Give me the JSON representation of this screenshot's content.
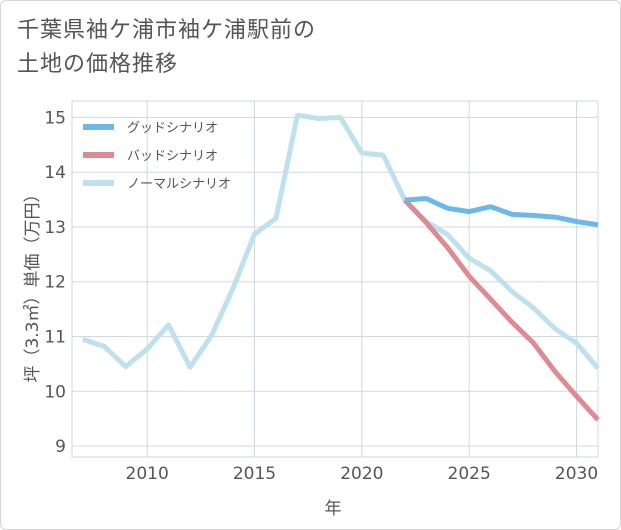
{
  "title_lines": [
    "千葉県袖ケ浦市袖ケ浦駅前の",
    "土地の価格推移"
  ],
  "chart_data": {
    "type": "line",
    "xlabel": "年",
    "ylabel": "坪（3.3㎡）単価（万円）",
    "xlim": [
      2006.5,
      2031
    ],
    "ylim": [
      8.8,
      15.3
    ],
    "x_ticks": [
      2010,
      2015,
      2020,
      2025,
      2030
    ],
    "y_ticks": [
      9,
      10,
      11,
      12,
      13,
      14,
      15
    ],
    "grid": true,
    "legend_position": "top-left",
    "series": [
      {
        "name": "グッドシナリオ",
        "color": "#6cb8ea",
        "x": [
          2022,
          2023,
          2024,
          2025,
          2026,
          2027,
          2028,
          2029,
          2030,
          2031
        ],
        "y": [
          13.49,
          13.52,
          13.34,
          13.28,
          13.37,
          13.23,
          13.21,
          13.18,
          13.1,
          13.04
        ]
      },
      {
        "name": "バッドシナリオ",
        "color": "#de8a92",
        "x": [
          2022,
          2023,
          2024,
          2025,
          2026,
          2027,
          2028,
          2029,
          2030,
          2031
        ],
        "y": [
          13.49,
          13.08,
          12.62,
          12.1,
          11.68,
          11.26,
          10.88,
          10.36,
          9.91,
          9.48
        ]
      },
      {
        "name": "ノーマルシナリオ",
        "color": "#bfe0ee",
        "x": [
          2007,
          2008,
          2009,
          2010,
          2011,
          2012,
          2013,
          2014,
          2015,
          2016,
          2017,
          2018,
          2019,
          2020,
          2021,
          2022,
          2023,
          2024,
          2025,
          2026,
          2027,
          2028,
          2029,
          2030,
          2031
        ],
        "y": [
          10.95,
          10.82,
          10.45,
          10.77,
          11.21,
          10.44,
          11.02,
          11.88,
          12.87,
          13.16,
          15.04,
          14.98,
          15.0,
          14.35,
          14.31,
          13.49,
          13.1,
          12.86,
          12.43,
          12.2,
          11.82,
          11.52,
          11.14,
          10.88,
          10.42
        ]
      }
    ]
  }
}
